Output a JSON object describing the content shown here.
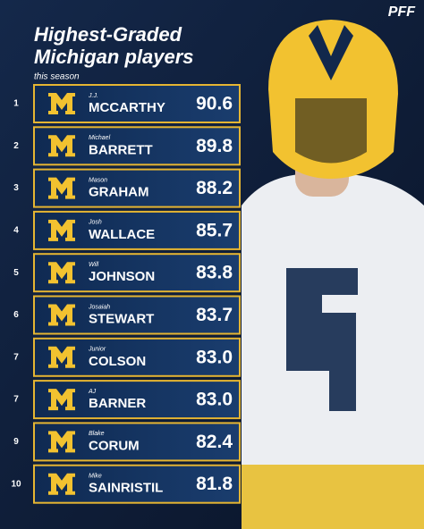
{
  "logo": "PFF",
  "header": {
    "title_lines": [
      "Highest-Graded",
      "Michigan players"
    ],
    "subtitle": "this season"
  },
  "rows": [
    {
      "rank": "1",
      "first_name": "J.J.",
      "last_name": "MCCARTHY",
      "grade": "90.6"
    },
    {
      "rank": "2",
      "first_name": "Michael",
      "last_name": "BARRETT",
      "grade": "89.8"
    },
    {
      "rank": "3",
      "first_name": "Mason",
      "last_name": "GRAHAM",
      "grade": "88.2"
    },
    {
      "rank": "4",
      "first_name": "Josh",
      "last_name": "WALLACE",
      "grade": "85.7"
    },
    {
      "rank": "5",
      "first_name": "Will",
      "last_name": "JOHNSON",
      "grade": "83.8"
    },
    {
      "rank": "6",
      "first_name": "Josaiah",
      "last_name": "STEWART",
      "grade": "83.7"
    },
    {
      "rank": "7",
      "first_name": "Junior",
      "last_name": "COLSON",
      "grade": "83.0"
    },
    {
      "rank": "7",
      "first_name": "AJ",
      "last_name": "BARNER",
      "grade": "83.0"
    },
    {
      "rank": "9",
      "first_name": "Blake",
      "last_name": "CORUM",
      "grade": "82.4"
    },
    {
      "rank": "10",
      "first_name": "Mike",
      "last_name": "SAINRISTIL",
      "grade": "81.8"
    }
  ]
}
